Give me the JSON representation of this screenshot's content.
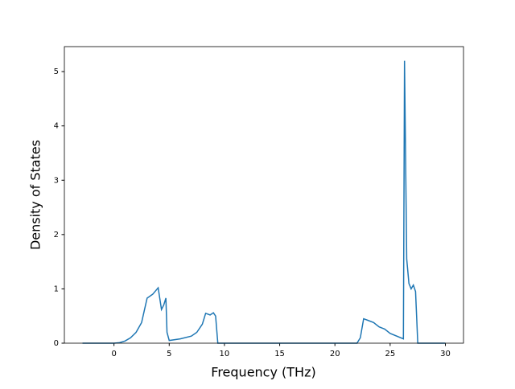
{
  "chart_data": {
    "type": "line",
    "xlabel": "Frequency (THz)",
    "ylabel": "Density of States",
    "x": [
      -2.85,
      0,
      0.5,
      1,
      1.5,
      2,
      2.5,
      3,
      3.5,
      4,
      4.3,
      4.5,
      4.7,
      4.8,
      5,
      6,
      7,
      7.5,
      8,
      8.3,
      8.7,
      9,
      9.2,
      9.4,
      22,
      22.3,
      22.6,
      23,
      23.5,
      24,
      24.5,
      25,
      26.2,
      26.3,
      26.5,
      26.7,
      26.9,
      27.1,
      27.3,
      27.5,
      30
    ],
    "series": [
      {
        "color": "#1f77b4",
        "values": [
          0,
          0,
          0.01,
          0.04,
          0.1,
          0.2,
          0.38,
          0.83,
          0.9,
          1.02,
          0.62,
          0.7,
          0.83,
          0.2,
          0.05,
          0.08,
          0.13,
          0.2,
          0.35,
          0.55,
          0.52,
          0.56,
          0.5,
          0,
          0,
          0.1,
          0.45,
          0.42,
          0.38,
          0.3,
          0.26,
          0.18,
          0.08,
          5.2,
          1.55,
          1.1,
          1.0,
          1.07,
          0.95,
          0,
          0
        ]
      }
    ],
    "xlim": [
      -4.49,
      31.64
    ],
    "ylim": [
      0,
      5.46
    ],
    "xticks": [
      0,
      5,
      10,
      15,
      20,
      25,
      30
    ],
    "yticks": [
      0,
      1,
      2,
      3,
      4,
      5
    ]
  }
}
